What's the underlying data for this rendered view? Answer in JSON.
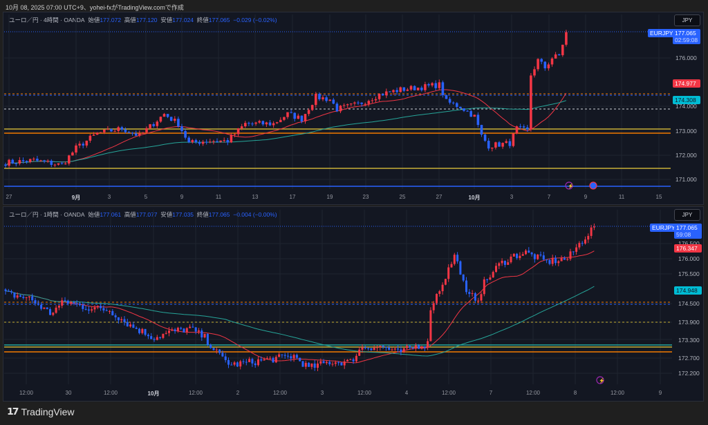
{
  "caption": "10月 08, 2025 07:00 UTC+9、yohei-fxがTradingView.comで作成",
  "colors": {
    "up": "#f23645",
    "down": "#2962ff",
    "ma_short": "#f23645",
    "ma_long": "#26a69a",
    "accent": "#2962ff"
  },
  "panels": [
    {
      "symbol": "ユーロ／円 · 4時間 · OANDA",
      "o_label": "始値",
      "open": "177.072",
      "h_label": "高値",
      "high": "177.120",
      "l_label": "安値",
      "low": "177.024",
      "c_label": "終値",
      "close": "177.065",
      "change": "−0.029 (−0.02%)",
      "currency": "JPY",
      "ticker_tag": "EURJPY",
      "last_price": "177.065",
      "countdown": "02:59:08",
      "ma_short_value": "174.977",
      "ma_long_value": "174.308",
      "price_ticks": [
        "176.000",
        "174.000",
        "173.000",
        "172.000",
        "171.000"
      ],
      "time_ticks": [
        "27",
        "9月",
        "3",
        "5",
        "9",
        "11",
        "13",
        "17",
        "19",
        "23",
        "25",
        "27",
        "10月",
        "3",
        "7",
        "9",
        "11",
        "15"
      ]
    },
    {
      "symbol": "ユーロ／円 · 1時間 · OANDA",
      "o_label": "始値",
      "open": "177.061",
      "h_label": "高値",
      "high": "177.077",
      "l_label": "安値",
      "low": "177.035",
      "c_label": "終値",
      "close": "177.065",
      "change": "−0.004 (−0.00%)",
      "currency": "JPY",
      "ticker_tag": "EURJPY",
      "last_price": "177.065",
      "countdown": "59:08",
      "ma_short_value": "176.347",
      "ma_long_value": "174.948",
      "price_ticks": [
        "176.500",
        "176.000",
        "175.500",
        "174.500",
        "173.900",
        "173.300",
        "172.700",
        "172.200"
      ],
      "time_ticks": [
        "12:00",
        "30",
        "12:00",
        "10月",
        "12:00",
        "2",
        "12:00",
        "3",
        "12:00",
        "4",
        "12:00",
        "7",
        "12:00",
        "8",
        "12:00",
        "9"
      ]
    }
  ],
  "chart_data": [
    {
      "type": "candlestick",
      "title": "EURJPY 4H",
      "ylim": [
        170.5,
        177.5
      ],
      "keypoints": [
        [
          0,
          171.7
        ],
        [
          8,
          171.8
        ],
        [
          16,
          171.6
        ],
        [
          20,
          172.3
        ],
        [
          26,
          172.9
        ],
        [
          33,
          173.1
        ],
        [
          38,
          172.8
        ],
        [
          45,
          173.7
        ],
        [
          49,
          173.3
        ],
        [
          52,
          172.5
        ],
        [
          57,
          172.6
        ],
        [
          63,
          172.6
        ],
        [
          68,
          173.3
        ],
        [
          76,
          173.3
        ],
        [
          80,
          173.7
        ],
        [
          84,
          173.5
        ],
        [
          88,
          174.4
        ],
        [
          92,
          174.3
        ],
        [
          94,
          173.9
        ],
        [
          100,
          174.1
        ],
        [
          106,
          174.5
        ],
        [
          112,
          174.7
        ],
        [
          118,
          174.8
        ],
        [
          123,
          174.9
        ],
        [
          125,
          174.2
        ],
        [
          129,
          174.0
        ],
        [
          133,
          173.6
        ],
        [
          135,
          172.8
        ],
        [
          137,
          172.4
        ],
        [
          143,
          172.5
        ],
        [
          145,
          173.1
        ],
        [
          148,
          173.0
        ],
        [
          149,
          175.3
        ],
        [
          151,
          175.9
        ],
        [
          153,
          175.6
        ],
        [
          155,
          176.0
        ],
        [
          157,
          176.1
        ],
        [
          159,
          177.06
        ]
      ],
      "ma_periods": [
        20,
        75
      ]
    },
    {
      "type": "candlestick",
      "title": "EURJPY 1H",
      "ylim": [
        172.0,
        177.3
      ],
      "keypoints": [
        [
          0,
          174.85
        ],
        [
          8,
          174.7
        ],
        [
          15,
          174.2
        ],
        [
          20,
          174.6
        ],
        [
          27,
          174.4
        ],
        [
          35,
          174.3
        ],
        [
          42,
          173.8
        ],
        [
          50,
          173.4
        ],
        [
          56,
          173.6
        ],
        [
          62,
          173.7
        ],
        [
          67,
          173.4
        ],
        [
          72,
          172.8
        ],
        [
          76,
          172.5
        ],
        [
          83,
          172.6
        ],
        [
          90,
          172.7
        ],
        [
          97,
          172.8
        ],
        [
          102,
          172.4
        ],
        [
          109,
          172.6
        ],
        [
          116,
          172.6
        ],
        [
          120,
          173.1
        ],
        [
          127,
          173.1
        ],
        [
          132,
          172.9
        ],
        [
          139,
          173.15
        ],
        [
          142,
          173.2
        ],
        [
          143,
          174.4
        ],
        [
          147,
          175.2
        ],
        [
          151,
          176.1
        ],
        [
          153,
          175.6
        ],
        [
          155,
          174.8
        ],
        [
          159,
          174.7
        ],
        [
          161,
          175.2
        ],
        [
          166,
          175.8
        ],
        [
          171,
          176.1
        ],
        [
          175,
          176.2
        ],
        [
          182,
          175.9
        ],
        [
          189,
          176.0
        ],
        [
          194,
          176.6
        ],
        [
          198,
          177.06
        ]
      ],
      "ma_periods": [
        20,
        75
      ]
    }
  ]
}
